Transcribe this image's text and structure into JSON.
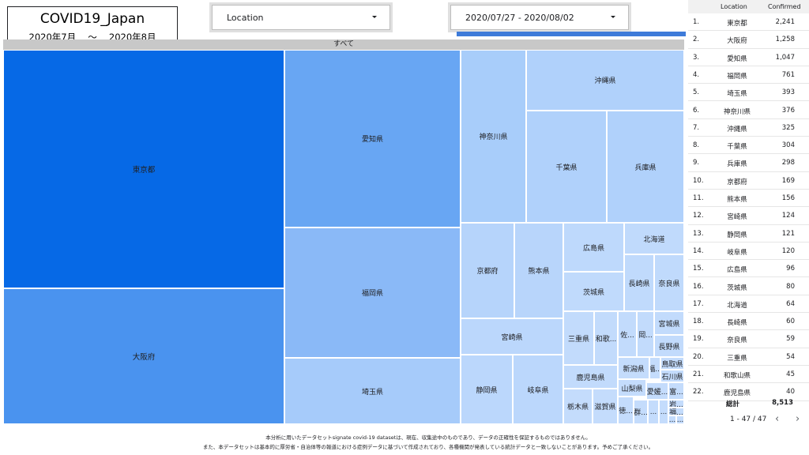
{
  "title": {
    "main": "COVID19_Japan",
    "period": "2020年7月　 〜　 2020年8月"
  },
  "filters": {
    "location_label": "Location",
    "date_range_label": "2020/07/27 - 2020/08/02"
  },
  "treemap": {
    "header": "すべて",
    "cells": [
      {
        "label": "東京都",
        "color": "#0669e6"
      },
      {
        "label": "大阪府",
        "color": "#4a93ef"
      },
      {
        "label": "愛知県",
        "color": "#68a6f3"
      },
      {
        "label": "福岡県",
        "color": "#8ab9f7"
      },
      {
        "label": "埼玉県",
        "color": "#a6cbfa"
      },
      {
        "label": "神奈川県",
        "color": "#a8cdfa"
      },
      {
        "label": "沖縄県",
        "color": "#b0d1fb"
      },
      {
        "label": "千葉県",
        "color": "#b0d1fb"
      },
      {
        "label": "兵庫県",
        "color": "#b0d1fb"
      },
      {
        "label": "京都府",
        "color": "#b6d4fb"
      },
      {
        "label": "熊本県",
        "color": "#b8d5fb"
      },
      {
        "label": "宮崎県",
        "color": "#bbd7fc"
      },
      {
        "label": "静岡県",
        "color": "#bbd7fc"
      },
      {
        "label": "岐阜県",
        "color": "#bbd7fc"
      },
      {
        "label": "広島県",
        "color": "#bed9fc"
      },
      {
        "label": "茨城県",
        "color": "#c0dafc"
      },
      {
        "label": "北海道",
        "color": "#c0dafc"
      },
      {
        "label": "長崎県",
        "color": "#c0dafc"
      },
      {
        "label": "奈良県",
        "color": "#c0dafc"
      },
      {
        "label": "三重県",
        "color": "#c2dbfc"
      },
      {
        "label": "和歌...",
        "color": "#c2dbfc"
      },
      {
        "label": "佐...",
        "color": "#c2dbfc"
      },
      {
        "label": "岡...",
        "color": "#c2dbfc"
      },
      {
        "label": "宮城県",
        "color": "#c2dbfc"
      },
      {
        "label": "長野県",
        "color": "#c2dbfc"
      },
      {
        "label": "鹿児島県",
        "color": "#c2dbfc"
      },
      {
        "label": "新潟県",
        "color": "#c4dcfc"
      },
      {
        "label": "福...",
        "color": "#c4dcfc"
      },
      {
        "label": "鳥取県",
        "color": "#c4dcfc"
      },
      {
        "label": "石川県",
        "color": "#c4dcfc"
      },
      {
        "label": "山梨県",
        "color": "#c4dcfc"
      },
      {
        "label": "愛媛...",
        "color": "#c4dcfc"
      },
      {
        "label": "富...",
        "color": "#c4dcfc"
      },
      {
        "label": "栃木県",
        "color": "#c4dcfc"
      },
      {
        "label": "滋賀県",
        "color": "#c4dcfc"
      },
      {
        "label": "徳...",
        "color": "#c4dcfc"
      },
      {
        "label": "群...",
        "color": "#c4dcfc"
      },
      {
        "label": "...",
        "color": "#c4dcfc"
      },
      {
        "label": "...",
        "color": "#c4dcfc"
      },
      {
        "label": "岩...",
        "color": "#c4dcfc"
      },
      {
        "label": "福...",
        "color": "#c4dcfc"
      },
      {
        "label": "...",
        "color": "#c4dcfc"
      },
      {
        "label": "...",
        "color": "#c4dcfc"
      }
    ]
  },
  "table": {
    "col_location": "Location",
    "col_confirmed": "Confirmed",
    "rows": [
      {
        "num": "1.",
        "loc": "東京都",
        "val": "2,241"
      },
      {
        "num": "2.",
        "loc": "大阪府",
        "val": "1,258"
      },
      {
        "num": "3.",
        "loc": "愛知県",
        "val": "1,047"
      },
      {
        "num": "4.",
        "loc": "福岡県",
        "val": "761"
      },
      {
        "num": "5.",
        "loc": "埼玉県",
        "val": "393"
      },
      {
        "num": "6.",
        "loc": "神奈川県",
        "val": "376"
      },
      {
        "num": "7.",
        "loc": "沖縄県",
        "val": "325"
      },
      {
        "num": "8.",
        "loc": "千葉県",
        "val": "304"
      },
      {
        "num": "9.",
        "loc": "兵庫県",
        "val": "298"
      },
      {
        "num": "10.",
        "loc": "京都府",
        "val": "169"
      },
      {
        "num": "11.",
        "loc": "熊本県",
        "val": "156"
      },
      {
        "num": "12.",
        "loc": "宮崎県",
        "val": "124"
      },
      {
        "num": "13.",
        "loc": "静岡県",
        "val": "121"
      },
      {
        "num": "14.",
        "loc": "岐阜県",
        "val": "120"
      },
      {
        "num": "15.",
        "loc": "広島県",
        "val": "96"
      },
      {
        "num": "16.",
        "loc": "茨城県",
        "val": "80"
      },
      {
        "num": "17.",
        "loc": "北海道",
        "val": "64"
      },
      {
        "num": "18.",
        "loc": "長崎県",
        "val": "60"
      },
      {
        "num": "19.",
        "loc": "奈良県",
        "val": "59"
      },
      {
        "num": "20.",
        "loc": "三重県",
        "val": "54"
      },
      {
        "num": "21.",
        "loc": "和歌山県",
        "val": "45"
      },
      {
        "num": "22.",
        "loc": "鹿児島県",
        "val": "40"
      }
    ],
    "total_label": "総計",
    "total_value": "8,513",
    "pager_range": "1 - 47 / 47",
    "pager_prev": "‹",
    "pager_next": "›"
  },
  "footer": {
    "line1": "本分析に用いたデータセットsignate covid-19 datasetは、現在、収集途中のものであり、データの正確性を保証するものではありません。",
    "line2": "また、本データセットは基本的に厚労省・自治体等の報道における症例データに基づいて作成されており、各種機関が発表している統計データと一致しないことがあります。予めご了承ください。"
  }
}
